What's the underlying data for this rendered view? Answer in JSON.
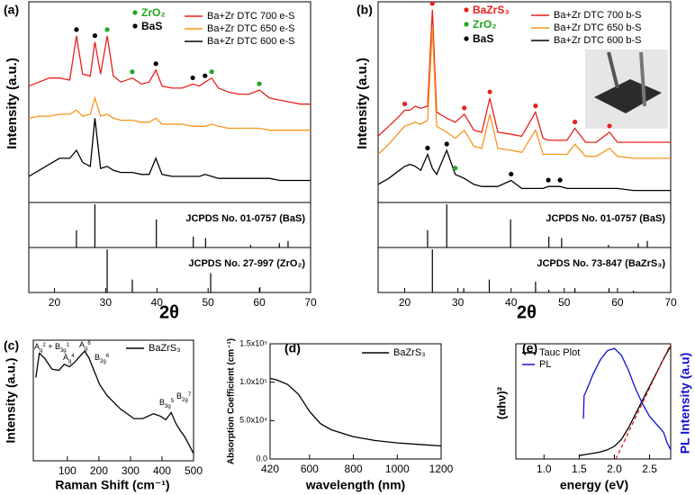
{
  "chart_data": [
    {
      "type": "line",
      "panel": "(a)",
      "ylabel": "Intensity (a.u.)",
      "xlabel": "2θ",
      "xlim": [
        15,
        70
      ],
      "xticks": [
        20,
        30,
        40,
        50,
        60,
        70
      ],
      "ylim": [
        0,
        100
      ],
      "x": [
        15,
        17,
        19,
        21,
        23,
        24.3,
        25.5,
        27,
        27.9,
        29,
        30.3,
        31.5,
        33,
        35.2,
        37,
        38.5,
        39.8,
        41,
        43,
        45,
        47,
        48.3,
        49.4,
        50.7,
        52,
        54,
        56,
        58,
        60,
        62,
        64,
        66,
        68,
        70
      ],
      "series": [
        {
          "name": "Ba+Zr DTC 700 e-S",
          "color": "#e8201c",
          "values": [
            58,
            60,
            62,
            62,
            61,
            83,
            64,
            63,
            80,
            64,
            83,
            63,
            60,
            62,
            59,
            60,
            66,
            58,
            57,
            57,
            59,
            58,
            60,
            62,
            57,
            55,
            54,
            54,
            56,
            52,
            51,
            50,
            49,
            49
          ]
        },
        {
          "name": "Ba+Zr DTC 650 e-S",
          "color": "#f7941d",
          "values": [
            42,
            43,
            43,
            44,
            44,
            46,
            43,
            44,
            52,
            43,
            44,
            42,
            41,
            41,
            40,
            40,
            42,
            39,
            39,
            39,
            38,
            38,
            38,
            39,
            38,
            37,
            37,
            37,
            37,
            36,
            36,
            36,
            36,
            36
          ]
        },
        {
          "name": "Ba+Zr DTC 600 e-S",
          "color": "#000000",
          "values": [
            13,
            16,
            19,
            22,
            22,
            26,
            20,
            18,
            42,
            17,
            18,
            16,
            15,
            15,
            14,
            14,
            22,
            14,
            13,
            13,
            13,
            13,
            14,
            13,
            12,
            12,
            12,
            12,
            12,
            12,
            11,
            11,
            11,
            11
          ]
        }
      ],
      "phases": [
        {
          "name": "ZrO₂",
          "color": "#1fa81f",
          "positions": [
            30.3,
            35.2,
            50.7,
            60
          ]
        },
        {
          "name": "BaS",
          "color": "#000000",
          "positions": [
            24.3,
            27.9,
            39.8,
            47,
            49.4
          ]
        }
      ]
    },
    {
      "type": "bar",
      "label": "JCPDS No. 01-0757 (BaS)",
      "xlim": [
        15,
        70
      ],
      "ylim": [
        0,
        1
      ],
      "color": "#000000",
      "x": [
        24.3,
        27.9,
        39.9,
        47.1,
        49.5,
        58.3,
        63.9,
        65.6
      ],
      "values": [
        0.4,
        1.0,
        0.65,
        0.25,
        0.22,
        0.06,
        0.1,
        0.15
      ]
    },
    {
      "type": "bar",
      "label": "JCPDS No. 27-997 (ZrO₂)",
      "xlim": [
        15,
        70
      ],
      "ylim": [
        0,
        1
      ],
      "color": "#000000",
      "x": [
        30.3,
        35.2,
        50.5,
        60.1
      ],
      "values": [
        1.0,
        0.3,
        0.45,
        0.12
      ]
    },
    {
      "type": "line",
      "panel": "(b)",
      "ylabel": "Intensity (a.u.)",
      "xlabel": "2θ",
      "xlim": [
        15,
        70
      ],
      "xticks": [
        20,
        30,
        40,
        50,
        60,
        70
      ],
      "ylim": [
        0,
        100
      ],
      "x": [
        15,
        17,
        19,
        20,
        21,
        22,
        23,
        24.3,
        25.2,
        26,
        27.9,
        29.5,
        31.2,
        33,
        34.5,
        36,
        37.5,
        40,
        42,
        44.6,
        46,
        47,
        49.2,
        50.5,
        52,
        54,
        56,
        58.5,
        60,
        63,
        66,
        70
      ],
      "series": [
        {
          "name": "Ba+Zr DTC 700 b-S",
          "color": "#e8201c",
          "values": [
            33,
            38,
            43,
            46,
            46,
            48,
            47,
            48,
            96,
            45,
            42,
            40,
            44,
            36,
            35,
            52,
            35,
            34,
            33,
            45,
            32,
            31,
            31,
            31,
            37,
            30,
            30,
            35,
            30,
            30,
            30,
            30
          ]
        },
        {
          "name": "Ba+Zr DTC 650 b-S",
          "color": "#f7941d",
          "values": [
            24,
            29,
            35,
            38,
            39,
            40,
            39,
            41,
            87,
            38,
            35,
            32,
            36,
            28,
            27,
            44,
            27,
            26,
            25,
            36,
            24,
            24,
            24,
            24,
            29,
            23,
            23,
            27,
            23,
            22,
            22,
            22
          ]
        },
        {
          "name": "Ba+Zr DTC 600 b-S",
          "color": "#000000",
          "values": [
            9,
            12,
            16,
            18,
            19,
            18,
            16,
            24,
            17,
            14,
            26,
            14,
            12,
            9,
            8,
            8,
            8,
            11,
            7,
            7,
            7,
            8,
            8,
            7,
            7,
            7,
            7,
            7,
            7,
            6,
            6,
            6
          ]
        }
      ],
      "phases": [
        {
          "name": "BaZrS₃",
          "color": "#e8201c",
          "positions": [
            20,
            25.2,
            31.2,
            36,
            44.6,
            52,
            58.5
          ]
        },
        {
          "name": "ZrO₂",
          "color": "#1fa81f",
          "positions": [
            29.5
          ]
        },
        {
          "name": "BaS",
          "color": "#000000",
          "positions": [
            24.3,
            27.9,
            40,
            47,
            49.2
          ]
        }
      ]
    },
    {
      "type": "bar",
      "label": "JCPDS No. 01-0757 (BaS)",
      "xlim": [
        15,
        70
      ],
      "ylim": [
        0,
        1
      ],
      "color": "#000000",
      "x": [
        24.3,
        27.9,
        39.9,
        47.1,
        49.5,
        58.3,
        63.9,
        65.6
      ],
      "values": [
        0.4,
        1.0,
        0.65,
        0.25,
        0.22,
        0.06,
        0.1,
        0.15
      ]
    },
    {
      "type": "bar",
      "label": "JCPDS No. 73-847 (BaZrS₃)",
      "xlim": [
        15,
        70
      ],
      "ylim": [
        0,
        1
      ],
      "color": "#000000",
      "x": [
        25.2,
        31.1,
        35.9,
        44.6,
        47.1,
        52,
        58.4,
        63
      ],
      "values": [
        1.0,
        0.1,
        0.3,
        0.25,
        0.06,
        0.1,
        0.1,
        0.04
      ]
    },
    {
      "type": "line",
      "panel": "(c)",
      "ylabel": "Intensity (a.u.)",
      "xlabel": "Raman Shift (cm⁻¹)",
      "xlim": [
        -8,
        500
      ],
      "xticks": [
        100,
        200,
        300,
        400,
        500
      ],
      "ylim": [
        0,
        100
      ],
      "x": [
        0,
        11,
        28,
        51,
        73,
        90,
        107,
        124,
        141,
        155,
        169,
        184,
        203,
        226,
        268,
        311,
        339,
        373,
        395,
        412,
        429,
        444,
        458,
        472,
        486,
        500
      ],
      "series": [
        {
          "name": "BaZrS₃",
          "color": "#000000",
          "values": [
            69,
            89,
            85,
            76,
            75,
            80,
            78,
            82,
            87,
            91,
            85,
            75,
            63,
            54,
            43,
            35,
            35,
            39,
            37,
            34,
            40,
            31,
            25,
            20,
            13,
            6
          ]
        }
      ],
      "annotations": [
        [
          {
            "t": "A",
            "sub": "g",
            "sup": "2"
          },
          {
            "t": " + B",
            "sub": "3g",
            "sup": "1"
          }
        ],
        [
          {
            "t": "A",
            "sub": "g",
            "sup": "4"
          }
        ],
        [
          {
            "t": "A",
            "sub": "g",
            "sup": "6"
          }
        ],
        [
          {
            "t": "B",
            "sub": "2g",
            "sup": "6"
          }
        ],
        [
          {
            "t": "B",
            "sub": "3g",
            "sup": "5"
          }
        ],
        [
          {
            "t": "B",
            "sub": "2g",
            "sup": "7"
          }
        ]
      ]
    },
    {
      "type": "line",
      "panel": "(d)",
      "ylabel": "Absorption Coefficient (cm⁻¹)",
      "xlabel": "wavelength (nm)",
      "xlim": [
        420,
        1200
      ],
      "xticks": [
        420,
        600,
        800,
        1000,
        1200
      ],
      "ylim": [
        0,
        150000
      ],
      "yticks": [
        {
          "value": 0,
          "label": "0.0"
        },
        {
          "value": 50000,
          "label": "5.0x10⁴"
        },
        {
          "value": 100000,
          "label": "1.0x10⁵"
        },
        {
          "value": 150000,
          "label": "1.5x10⁵"
        }
      ],
      "x": [
        420,
        450,
        500,
        550,
        600,
        650,
        700,
        800,
        900,
        1000,
        1100,
        1200
      ],
      "series": [
        {
          "name": "BaZrS₃",
          "color": "#000000",
          "values": [
            105000,
            103000,
            97000,
            84000,
            62000,
            46000,
            38000,
            29000,
            24000,
            21000,
            19000,
            17000
          ]
        }
      ]
    },
    {
      "type": "line",
      "panel": "(e)",
      "ylabel": "(αhν)²",
      "y2label": "PL Intensity (a.u)",
      "xlabel": "energy (eV)",
      "xlim": [
        0.6,
        2.8
      ],
      "xticks": [
        {
          "value": 1.0,
          "label": "1.0"
        },
        {
          "value": 1.5,
          "label": "1.5"
        },
        {
          "value": 2.0,
          "label": "2.0"
        },
        {
          "value": 2.5,
          "label": "2.5"
        }
      ],
      "ylim": [
        0,
        100
      ],
      "y2lim": [
        0,
        100
      ],
      "series": [
        {
          "name": "Tauc Plot",
          "color": "#000000",
          "x": [
            1.5,
            1.6,
            1.7,
            1.8,
            1.9,
            2.0,
            2.1,
            2.2,
            2.3,
            2.4,
            2.5,
            2.6,
            2.7,
            2.8
          ],
          "values": [
            3,
            4,
            5,
            6,
            8,
            11,
            17,
            27,
            39,
            51,
            63,
            75,
            87,
            98
          ]
        },
        {
          "name": "PL",
          "color": "#1010d0",
          "axis": "y2",
          "x": [
            1.56,
            1.57,
            1.6,
            1.7,
            1.8,
            1.9,
            2.0,
            2.1,
            2.2,
            2.3,
            2.4,
            2.5,
            2.6,
            2.7,
            2.75,
            2.8
          ],
          "values": [
            35,
            55,
            59,
            74,
            86,
            94,
            96,
            90,
            77,
            61,
            48,
            37,
            30,
            23,
            14,
            8
          ]
        }
      ],
      "fit": {
        "color": "#d62020",
        "x": [
          2.02,
          2.8
        ],
        "values": [
          0,
          100
        ]
      }
    }
  ]
}
